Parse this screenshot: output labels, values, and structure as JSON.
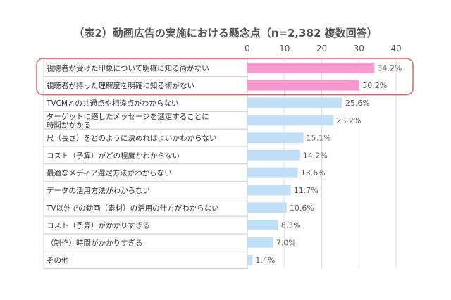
{
  "chart_data": {
    "type": "bar",
    "orientation": "horizontal",
    "title": "（表2）動画広告の実施における懸念点（n=2,382 複数回答）",
    "xlim": [
      0,
      40
    ],
    "ticks": [
      "0",
      "10",
      "20",
      "30",
      "40"
    ],
    "categories": [
      [
        "視聴者が受けた印象について明確に知る術がない"
      ],
      [
        "視聴者が持った理解度を明確に知る術がない"
      ],
      [
        "TVCMとの共通点や相違点がわからない"
      ],
      [
        "ターゲットに適したメッセージを選定することに",
        "時間がかかる"
      ],
      [
        "尺（長さ）をどのように決めればよいかわからない"
      ],
      [
        "コスト（予算）がどの程度かわからない"
      ],
      [
        "最適なメディア選定方法がわからない"
      ],
      [
        "データの活用方法がわからない"
      ],
      [
        "TV以外での動画（素材）の活用の仕方がわからない"
      ],
      [
        "コスト（予算）がかかりすぎる"
      ],
      [
        "（制作）時間がかかりすぎる"
      ],
      [
        "その他"
      ]
    ],
    "values": [
      34.2,
      30.2,
      25.6,
      23.2,
      15.1,
      14.2,
      13.6,
      11.7,
      10.6,
      8.3,
      7.0,
      1.4
    ],
    "value_labels": [
      "34.2%",
      "30.2%",
      "25.6%",
      "23.2%",
      "15.1%",
      "14.2%",
      "13.6%",
      "11.7%",
      "10.6%",
      "8.3%",
      "7.0%",
      "1.4%"
    ],
    "highlighted_count": 2,
    "colors": {
      "highlight": "#f799cc",
      "normal": "#bfe0f8",
      "outline": "#d9646a",
      "grid": "#dddddd"
    }
  }
}
